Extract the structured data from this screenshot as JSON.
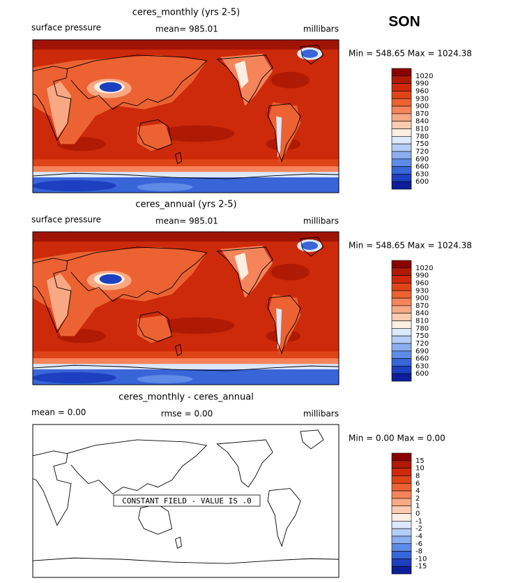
{
  "season": "SON",
  "panels": [
    {
      "title": "ceres_monthly (yrs 2-5)",
      "left": "surface pressure",
      "center": "mean= 985.01",
      "right": "millibars",
      "minmax": "Min = 548.65 Max = 1024.38",
      "field": "filled",
      "colorbar": {
        "labels": [
          1020,
          990,
          960,
          930,
          900,
          870,
          840,
          810,
          780,
          750,
          720,
          690,
          660,
          630,
          600
        ],
        "colors": [
          "#8b0000",
          "#b01a05",
          "#cc2a0a",
          "#dd4418",
          "#ec6233",
          "#f5845a",
          "#f8a883",
          "#fbcbb0",
          "#fdeee2",
          "#dce8fb",
          "#b5cdf6",
          "#8aaef0",
          "#5f8be8",
          "#3865d8",
          "#1d3fc0",
          "#0d1f98"
        ]
      }
    },
    {
      "title": "ceres_annual (yrs 2-5)",
      "left": "surface pressure",
      "center": "mean= 985.01",
      "right": "millibars",
      "minmax": "Min = 548.65 Max = 1024.38",
      "field": "filled",
      "colorbar": {
        "labels": [
          1020,
          990,
          960,
          930,
          900,
          870,
          840,
          810,
          780,
          750,
          720,
          690,
          660,
          630,
          600
        ],
        "colors": [
          "#8b0000",
          "#b01a05",
          "#cc2a0a",
          "#dd4418",
          "#ec6233",
          "#f5845a",
          "#f8a883",
          "#fbcbb0",
          "#fdeee2",
          "#dce8fb",
          "#b5cdf6",
          "#8aaef0",
          "#5f8be8",
          "#3865d8",
          "#1d3fc0",
          "#0d1f98"
        ]
      }
    },
    {
      "title": "ceres_monthly - ceres_annual",
      "left": "mean =    0.00",
      "center": "rmse =    0.00",
      "right": "millibars",
      "minmax": "Min =   0.00 Max =   0.00",
      "field": "constant",
      "note": "CONSTANT FIELD - VALUE IS .0",
      "colorbar": {
        "labels": [
          15,
          10,
          8,
          6,
          4,
          2,
          1,
          0,
          -1,
          -2,
          -4,
          -6,
          -8,
          -10,
          -15
        ],
        "colors": [
          "#8b0000",
          "#b01a05",
          "#cc2a0a",
          "#dd4418",
          "#ec6233",
          "#f5845a",
          "#f8a883",
          "#fbcbb0",
          "#fdeee2",
          "#dce8fb",
          "#b5cdf6",
          "#8aaef0",
          "#5f8be8",
          "#3865d8",
          "#1d3fc0",
          "#0d1f98"
        ]
      }
    }
  ]
}
